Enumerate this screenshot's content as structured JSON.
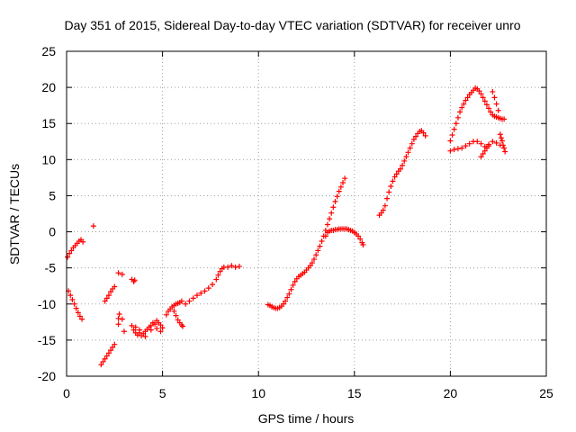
{
  "chart_data": {
    "type": "scatter",
    "title": "Day 351 of 2015, Sidereal Day-to-day VTEC variation (SDTVAR) for receiver unro",
    "xlabel": "GPS time / hours",
    "ylabel": "SDTVAR / TECUs",
    "xlim": [
      0,
      25
    ],
    "ylim": [
      -20,
      25
    ],
    "xticks": [
      "0",
      "5",
      "10",
      "15",
      "20",
      "25"
    ],
    "yticks": [
      "-20",
      "-15",
      "-10",
      "-5",
      "0",
      "5",
      "10",
      "15",
      "20",
      "25"
    ],
    "grid": true,
    "marker": "plus",
    "color": "#ff0000",
    "series": [
      {
        "points": [
          [
            0.05,
            -3.5
          ],
          [
            0.15,
            -3.0
          ],
          [
            0.25,
            -2.6
          ],
          [
            0.35,
            -2.2
          ],
          [
            0.45,
            -1.9
          ],
          [
            0.55,
            -1.6
          ],
          [
            0.65,
            -1.3
          ],
          [
            0.75,
            -1.1
          ],
          [
            0.85,
            -1.4
          ],
          [
            1.4,
            0.8
          ],
          [
            0.1,
            -8.2
          ],
          [
            0.2,
            -8.8
          ],
          [
            0.3,
            -9.4
          ],
          [
            0.4,
            -10.0
          ],
          [
            0.5,
            -10.6
          ],
          [
            0.6,
            -11.2
          ],
          [
            0.7,
            -11.7
          ],
          [
            0.8,
            -12.1
          ],
          [
            1.8,
            -18.4
          ],
          [
            1.9,
            -18.0
          ],
          [
            2.0,
            -17.6
          ],
          [
            2.1,
            -17.2
          ],
          [
            2.2,
            -16.8
          ],
          [
            2.3,
            -16.4
          ],
          [
            2.4,
            -16.0
          ],
          [
            2.5,
            -15.6
          ],
          [
            2.0,
            -9.6
          ],
          [
            2.1,
            -9.2
          ],
          [
            2.2,
            -8.8
          ],
          [
            2.3,
            -8.3
          ],
          [
            2.4,
            -7.9
          ],
          [
            2.5,
            -7.6
          ],
          [
            2.7,
            -5.7
          ],
          [
            2.9,
            -5.9
          ],
          [
            2.7,
            -12.0
          ],
          [
            2.75,
            -11.4
          ],
          [
            2.7,
            -12.8
          ],
          [
            2.9,
            -12.1
          ],
          [
            3.0,
            -13.8
          ],
          [
            3.4,
            -6.6
          ],
          [
            3.5,
            -6.9
          ],
          [
            3.55,
            -6.7
          ],
          [
            3.4,
            -13.0
          ],
          [
            3.5,
            -13.6
          ],
          [
            3.6,
            -14.0
          ],
          [
            3.7,
            -14.3
          ],
          [
            3.8,
            -14.0
          ],
          [
            3.9,
            -14.4
          ],
          [
            4.0,
            -14.1
          ],
          [
            4.1,
            -13.8
          ],
          [
            4.2,
            -13.5
          ],
          [
            4.3,
            -13.2
          ],
          [
            4.4,
            -13.0
          ],
          [
            4.5,
            -12.6
          ],
          [
            4.6,
            -12.8
          ],
          [
            4.7,
            -12.3
          ],
          [
            4.8,
            -12.6
          ],
          [
            4.9,
            -12.9
          ],
          [
            5.0,
            -13.3
          ],
          [
            3.6,
            -13.2
          ],
          [
            3.8,
            -13.6
          ],
          [
            4.1,
            -14.5
          ],
          [
            4.4,
            -13.6
          ],
          [
            4.7,
            -13.4
          ],
          [
            4.9,
            -13.8
          ],
          [
            5.2,
            -11.5
          ],
          [
            5.3,
            -11.0
          ],
          [
            5.4,
            -10.7
          ],
          [
            5.5,
            -10.4
          ],
          [
            5.6,
            -10.2
          ],
          [
            5.7,
            -10.0
          ],
          [
            5.8,
            -9.9
          ],
          [
            5.9,
            -9.8
          ],
          [
            5.6,
            -11.0
          ],
          [
            5.7,
            -11.6
          ],
          [
            5.8,
            -12.2
          ],
          [
            5.9,
            -12.6
          ],
          [
            6.0,
            -12.9
          ],
          [
            6.05,
            -13.1
          ],
          [
            6.0,
            -9.6
          ],
          [
            6.2,
            -10.0
          ],
          [
            6.4,
            -9.6
          ],
          [
            6.6,
            -9.2
          ],
          [
            6.8,
            -8.8
          ],
          [
            7.0,
            -8.5
          ],
          [
            7.2,
            -8.2
          ],
          [
            7.4,
            -7.8
          ],
          [
            7.6,
            -7.3
          ],
          [
            7.8,
            -6.6
          ],
          [
            7.9,
            -6.0
          ],
          [
            8.0,
            -5.5
          ],
          [
            8.1,
            -5.1
          ],
          [
            8.2,
            -4.9
          ],
          [
            8.4,
            -4.9
          ],
          [
            8.6,
            -4.7
          ],
          [
            8.8,
            -4.9
          ],
          [
            9.0,
            -4.8
          ],
          [
            10.5,
            -10.1
          ],
          [
            10.6,
            -10.2
          ],
          [
            10.7,
            -10.4
          ],
          [
            10.8,
            -10.5
          ],
          [
            10.9,
            -10.6
          ],
          [
            11.0,
            -10.6
          ],
          [
            11.1,
            -10.5
          ],
          [
            11.2,
            -10.3
          ],
          [
            11.3,
            -10.0
          ],
          [
            11.4,
            -9.6
          ],
          [
            11.5,
            -9.1
          ],
          [
            11.6,
            -8.6
          ],
          [
            11.7,
            -8.0
          ],
          [
            11.8,
            -7.4
          ],
          [
            11.9,
            -6.9
          ],
          [
            12.0,
            -6.5
          ],
          [
            12.1,
            -6.2
          ],
          [
            12.2,
            -6.0
          ],
          [
            12.3,
            -5.8
          ],
          [
            12.4,
            -5.6
          ],
          [
            12.5,
            -5.3
          ],
          [
            12.6,
            -5.0
          ],
          [
            12.7,
            -4.7
          ],
          [
            12.8,
            -4.3
          ],
          [
            12.9,
            -3.8
          ],
          [
            13.0,
            -3.2
          ],
          [
            13.1,
            -2.6
          ],
          [
            13.2,
            -2.0
          ],
          [
            13.3,
            -1.3
          ],
          [
            13.4,
            -0.6
          ],
          [
            13.5,
            0.2
          ],
          [
            13.6,
            1.0
          ],
          [
            13.7,
            1.8
          ],
          [
            13.8,
            2.6
          ],
          [
            13.9,
            3.4
          ],
          [
            14.0,
            4.2
          ],
          [
            14.1,
            4.9
          ],
          [
            14.2,
            5.6
          ],
          [
            14.3,
            6.2
          ],
          [
            14.4,
            6.8
          ],
          [
            14.5,
            7.4
          ],
          [
            13.5,
            -0.6
          ],
          [
            13.6,
            -0.1
          ],
          [
            13.7,
            0.1
          ],
          [
            13.8,
            0.2
          ],
          [
            13.9,
            0.2
          ],
          [
            14.0,
            0.3
          ],
          [
            14.1,
            0.3
          ],
          [
            14.2,
            0.4
          ],
          [
            14.3,
            0.4
          ],
          [
            14.4,
            0.4
          ],
          [
            14.5,
            0.4
          ],
          [
            14.6,
            0.4
          ],
          [
            14.7,
            0.3
          ],
          [
            14.8,
            0.2
          ],
          [
            14.9,
            0.1
          ],
          [
            15.0,
            -0.1
          ],
          [
            15.1,
            -0.3
          ],
          [
            15.2,
            -0.6
          ],
          [
            15.3,
            -1.0
          ],
          [
            15.4,
            -1.5
          ],
          [
            15.45,
            -1.8
          ],
          [
            16.3,
            2.3
          ],
          [
            16.4,
            2.6
          ],
          [
            16.5,
            3.0
          ],
          [
            16.6,
            3.6
          ],
          [
            16.7,
            4.6
          ],
          [
            16.8,
            5.5
          ],
          [
            16.9,
            6.3
          ],
          [
            17.0,
            7.0
          ],
          [
            17.1,
            7.6
          ],
          [
            17.2,
            8.0
          ],
          [
            17.3,
            8.4
          ],
          [
            17.4,
            8.7
          ],
          [
            17.5,
            9.2
          ],
          [
            17.6,
            9.8
          ],
          [
            17.7,
            10.4
          ],
          [
            17.8,
            11.0
          ],
          [
            17.9,
            11.6
          ],
          [
            18.0,
            12.2
          ],
          [
            18.1,
            12.8
          ],
          [
            18.2,
            13.2
          ],
          [
            18.3,
            13.6
          ],
          [
            18.4,
            13.9
          ],
          [
            18.5,
            14.0
          ],
          [
            18.6,
            13.7
          ],
          [
            18.7,
            13.3
          ],
          [
            20.0,
            12.6
          ],
          [
            20.1,
            13.4
          ],
          [
            20.2,
            14.2
          ],
          [
            20.3,
            15.0
          ],
          [
            20.4,
            15.8
          ],
          [
            20.5,
            16.6
          ],
          [
            20.6,
            17.2
          ],
          [
            20.7,
            17.7
          ],
          [
            20.8,
            18.2
          ],
          [
            20.9,
            18.6
          ],
          [
            21.0,
            19.0
          ],
          [
            21.1,
            19.3
          ],
          [
            21.2,
            19.6
          ],
          [
            21.3,
            19.9
          ],
          [
            21.4,
            19.8
          ],
          [
            21.5,
            19.5
          ],
          [
            21.6,
            19.1
          ],
          [
            21.7,
            18.6
          ],
          [
            21.8,
            18.1
          ],
          [
            21.9,
            17.6
          ],
          [
            22.0,
            17.1
          ],
          [
            22.1,
            16.6
          ],
          [
            22.2,
            16.2
          ],
          [
            22.3,
            16.0
          ],
          [
            22.4,
            15.9
          ],
          [
            22.5,
            15.8
          ],
          [
            22.6,
            15.7
          ],
          [
            22.7,
            15.6
          ],
          [
            22.8,
            15.6
          ],
          [
            22.2,
            19.4
          ],
          [
            22.3,
            18.6
          ],
          [
            22.4,
            17.7
          ],
          [
            22.5,
            16.8
          ],
          [
            20.0,
            11.2
          ],
          [
            20.2,
            11.4
          ],
          [
            20.4,
            11.5
          ],
          [
            20.6,
            11.6
          ],
          [
            20.8,
            11.9
          ],
          [
            21.0,
            12.2
          ],
          [
            21.2,
            12.5
          ],
          [
            21.4,
            12.5
          ],
          [
            21.6,
            12.2
          ],
          [
            21.8,
            11.8
          ],
          [
            22.0,
            12.1
          ],
          [
            22.2,
            12.5
          ],
          [
            22.4,
            12.3
          ],
          [
            22.6,
            12.0
          ],
          [
            21.6,
            10.4
          ],
          [
            21.7,
            10.8
          ],
          [
            21.8,
            11.2
          ],
          [
            21.9,
            11.6
          ],
          [
            22.0,
            11.9
          ],
          [
            22.6,
            13.5
          ],
          [
            22.65,
            13.0
          ],
          [
            22.7,
            12.6
          ],
          [
            22.75,
            12.0
          ],
          [
            22.8,
            11.6
          ],
          [
            22.85,
            11.1
          ]
        ]
      }
    ]
  }
}
